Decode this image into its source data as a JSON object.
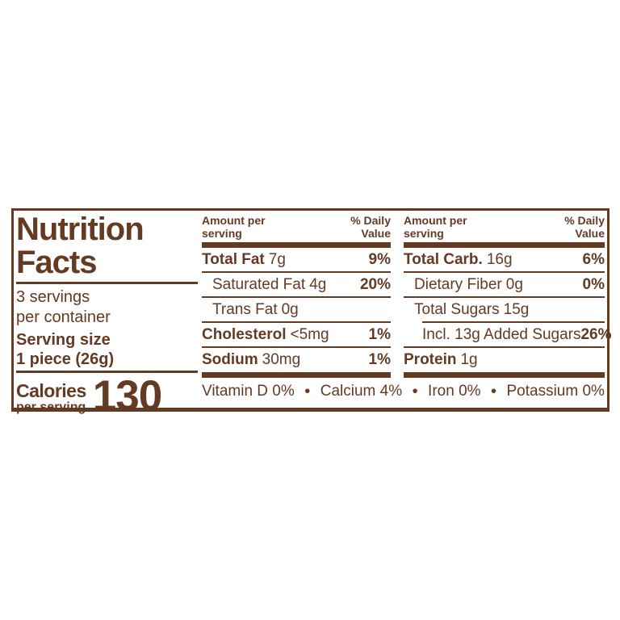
{
  "panel": {
    "title": {
      "line1": "Nutrition",
      "line2": "Facts"
    },
    "servings": {
      "line1": "3 servings",
      "line2": "per container"
    },
    "serving_size": {
      "label": "Serving size",
      "value": "1 piece (26g)"
    },
    "calories": {
      "label": "Calories",
      "sublabel": "per serving",
      "value": "130"
    }
  },
  "columns": [
    {
      "header": {
        "amount_line1": "Amount per",
        "amount_line2": "serving",
        "dv_line1": "% Daily",
        "dv_line2": "Value"
      },
      "rows": [
        {
          "name": "Total Fat",
          "value": "7g",
          "dv": "9%"
        },
        {
          "name": "Saturated Fat",
          "value": "4g",
          "dv": "20%"
        },
        {
          "name": "Trans Fat",
          "value": "0g",
          "dv": ""
        },
        {
          "name": "Cholesterol",
          "value": "<5mg",
          "dv": "1%"
        },
        {
          "name": "Sodium",
          "value": "30mg",
          "dv": "1%"
        }
      ]
    },
    {
      "header": {
        "amount_line1": "Amount per",
        "amount_line2": "serving",
        "dv_line1": "% Daily",
        "dv_line2": "Value"
      },
      "rows": [
        {
          "name": "Total Carb.",
          "value": "16g",
          "dv": "6%"
        },
        {
          "name": "Dietary Fiber",
          "value": "0g",
          "dv": "0%"
        },
        {
          "name": "Total Sugars",
          "value": "15g",
          "dv": ""
        },
        {
          "name": "Incl. 13g Added Sugars",
          "value": "",
          "dv": "26%"
        },
        {
          "name": "Protein",
          "value": "1g",
          "dv": ""
        }
      ]
    }
  ],
  "micros": {
    "separator": "•",
    "items": [
      "Vitamin D 0%",
      "Calcium 4%",
      "Iron 0%",
      "Potassium 0%"
    ]
  },
  "colors": {
    "brown": "#643a23",
    "background": "#ffffff"
  }
}
